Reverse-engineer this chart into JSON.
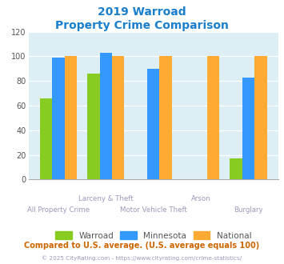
{
  "title_line1": "2019 Warroad",
  "title_line2": "Property Crime Comparison",
  "title_color": "#1a7fcc",
  "categories": [
    "All Property Crime",
    "Larceny & Theft",
    "Motor Vehicle Theft",
    "Arson",
    "Burglary"
  ],
  "warroad": [
    66,
    86,
    0,
    0,
    17
  ],
  "minnesota": [
    99,
    103,
    90,
    0,
    83
  ],
  "national": [
    100,
    100,
    100,
    100,
    100
  ],
  "bar_colors": {
    "warroad": "#88cc22",
    "minnesota": "#3399ff",
    "national": "#ffaa33"
  },
  "ylim": [
    0,
    120
  ],
  "yticks": [
    0,
    20,
    40,
    60,
    80,
    100,
    120
  ],
  "plot_bg": "#ddeef5",
  "legend_labels": [
    "Warroad",
    "Minnesota",
    "National"
  ],
  "top_xlabels": [
    "",
    "Larceny & Theft",
    "",
    "Arson",
    ""
  ],
  "bot_xlabels": [
    "All Property Crime",
    "",
    "Motor Vehicle Theft",
    "",
    "Burglary"
  ],
  "footnote1": "Compared to U.S. average. (U.S. average equals 100)",
  "footnote2": "© 2025 CityRating.com - https://www.cityrating.com/crime-statistics/",
  "footnote1_color": "#cc6600",
  "footnote2_color": "#9999bb",
  "xlabel_color": "#9999bb"
}
